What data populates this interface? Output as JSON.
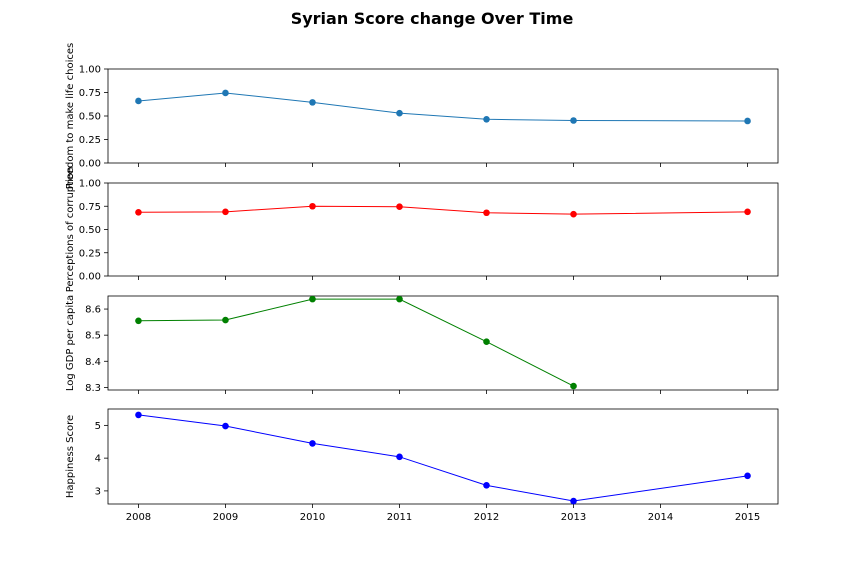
{
  "chart_data": {
    "type": "line",
    "title": "Syrian Score change Over Time",
    "x": [
      2008,
      2009,
      2010,
      2011,
      2012,
      2013,
      2014,
      2015
    ],
    "x_ticks": [
      "2008",
      "2009",
      "2010",
      "2011",
      "2012",
      "2013",
      "2014",
      "2015"
    ],
    "xlim": [
      2007.65,
      2015.35
    ],
    "grid": false,
    "panels": [
      {
        "ylabel": "Freedom to make life choices",
        "ylim": [
          0,
          1
        ],
        "yticks": [
          "0.00",
          "0.25",
          "0.50",
          "0.75",
          "1.00"
        ],
        "ytick_values": [
          0,
          0.25,
          0.5,
          0.75,
          1.0
        ],
        "color": "#1f77b4",
        "points": [
          [
            2008,
            0.66
          ],
          [
            2009,
            0.745
          ],
          [
            2010,
            0.645
          ],
          [
            2011,
            0.53
          ],
          [
            2012,
            0.465
          ],
          [
            2013,
            0.452
          ],
          [
            2015,
            0.447
          ]
        ]
      },
      {
        "ylabel": "Perceptions of corruption",
        "ylim": [
          0,
          1
        ],
        "yticks": [
          "0.00",
          "0.25",
          "0.50",
          "0.75",
          "1.00"
        ],
        "ytick_values": [
          0,
          0.25,
          0.5,
          0.75,
          1.0
        ],
        "color": "#ff0000",
        "points": [
          [
            2008,
            0.685
          ],
          [
            2009,
            0.69
          ],
          [
            2010,
            0.75
          ],
          [
            2011,
            0.745
          ],
          [
            2012,
            0.68
          ],
          [
            2013,
            0.665
          ],
          [
            2015,
            0.69
          ]
        ]
      },
      {
        "ylabel": "Log GDP per capita",
        "ylim": [
          8.29,
          8.65
        ],
        "yticks": [
          "8.3",
          "8.4",
          "8.5",
          "8.6"
        ],
        "ytick_values": [
          8.3,
          8.4,
          8.5,
          8.6
        ],
        "color": "#008000",
        "points": [
          [
            2008,
            8.555
          ],
          [
            2009,
            8.558
          ],
          [
            2010,
            8.638
          ],
          [
            2011,
            8.638
          ],
          [
            2012,
            8.475
          ],
          [
            2013,
            8.305
          ]
        ]
      },
      {
        "ylabel": "Happiness Score",
        "ylim": [
          2.6,
          5.5
        ],
        "yticks": [
          "3",
          "4",
          "5"
        ],
        "ytick_values": [
          3,
          4,
          5
        ],
        "color": "#0000ff",
        "points": [
          [
            2008,
            5.32
          ],
          [
            2009,
            4.98
          ],
          [
            2010,
            4.45
          ],
          [
            2011,
            4.04
          ],
          [
            2012,
            3.17
          ],
          [
            2013,
            2.69
          ],
          [
            2015,
            3.46
          ]
        ]
      }
    ]
  }
}
